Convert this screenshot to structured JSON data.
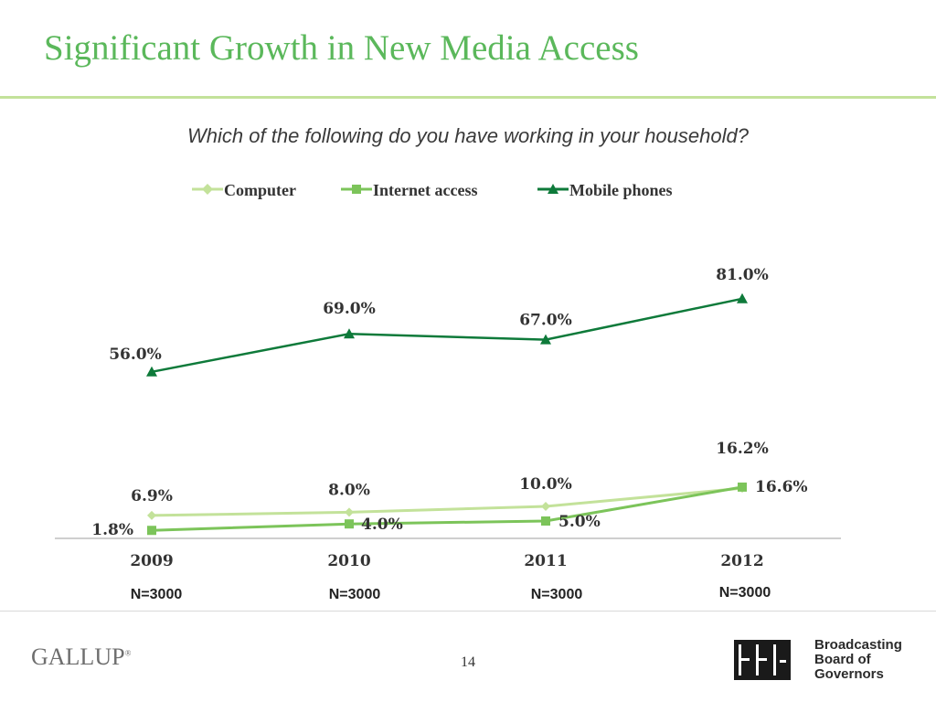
{
  "slide": {
    "title": "Significant Growth in New Media Access",
    "subtitle": "Which of the following do you have working in your household?",
    "page_number": "14"
  },
  "footer": {
    "left_logo_text": "GALLUP",
    "right_logo_text": [
      "Broadcasting",
      "Board of",
      "Governors"
    ]
  },
  "colors": {
    "title": "#5bb85b",
    "computer": "#c3e29a",
    "internet": "#7cc45a",
    "mobile": "#0e7a3a"
  },
  "chart_data": {
    "type": "line",
    "categories": [
      "2009",
      "2010",
      "2011",
      "2012"
    ],
    "sample_sizes": [
      "N=3000",
      "N=3000",
      "N=3000",
      "N=3000"
    ],
    "ylim": [
      0,
      100
    ],
    "grid": false,
    "legend_position": "top",
    "series": [
      {
        "key": "computer",
        "name": "Computer",
        "marker": "diamond",
        "values": [
          6.9,
          8.0,
          10.0,
          16.2
        ],
        "labels": [
          "6.9%",
          "8.0%",
          "10.0%",
          "16.2%"
        ]
      },
      {
        "key": "internet",
        "name": "Internet access",
        "marker": "square",
        "values": [
          1.8,
          4.0,
          5.0,
          16.6
        ],
        "labels": [
          "1.8%",
          "4.0%",
          "5.0%",
          "16.6%"
        ]
      },
      {
        "key": "mobile",
        "name": "Mobile phones",
        "marker": "triangle",
        "values": [
          56.0,
          69.0,
          67.0,
          81.0
        ],
        "labels": [
          "56.0%",
          "69.0%",
          "67.0%",
          "81.0%"
        ]
      }
    ]
  }
}
